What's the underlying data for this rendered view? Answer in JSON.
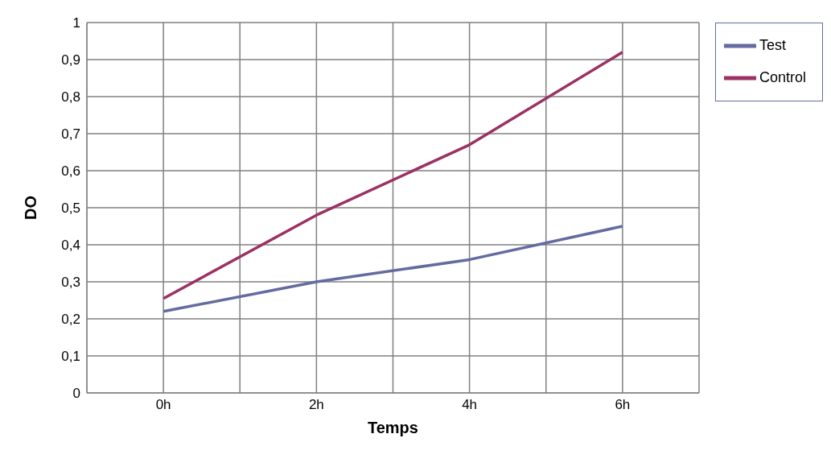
{
  "chart_data": {
    "type": "line",
    "xlabel": "Temps",
    "ylabel": "DO",
    "x": [
      0,
      2,
      4,
      6
    ],
    "xlim": [
      -1,
      7
    ],
    "xticks": [
      {
        "value": -1,
        "label": null
      },
      {
        "value": 0,
        "label": "0h"
      },
      {
        "value": 1,
        "label": null
      },
      {
        "value": 2,
        "label": "2h"
      },
      {
        "value": 3,
        "label": null
      },
      {
        "value": 4,
        "label": "4h"
      },
      {
        "value": 5,
        "label": null
      },
      {
        "value": 6,
        "label": "6h"
      },
      {
        "value": 7,
        "label": null
      }
    ],
    "ylim": [
      0,
      1
    ],
    "yticks": [
      0,
      {
        "value": 0.1,
        "label": "0,1"
      },
      {
        "value": 0.2,
        "label": "0,2"
      },
      {
        "value": 0.3,
        "label": "0,3"
      },
      {
        "value": 0.4,
        "label": "0,4"
      },
      {
        "value": 0.5,
        "label": "0,5"
      },
      {
        "value": 0.6,
        "label": "0,6"
      },
      {
        "value": 0.7,
        "label": "0,7"
      },
      {
        "value": 0.8,
        "label": "0,8"
      },
      {
        "value": 0.9,
        "label": "0,9"
      },
      1
    ],
    "grid": true,
    "legend": "right",
    "marker": "none",
    "line_style": "solid",
    "series": [
      {
        "name": "Test",
        "color": "#646ba0",
        "values": [
          0.22,
          0.3,
          0.36,
          0.45
        ]
      },
      {
        "name": "Control",
        "color": "#9b3164",
        "values": [
          0.255,
          0.48,
          0.67,
          0.92
        ]
      }
    ]
  }
}
